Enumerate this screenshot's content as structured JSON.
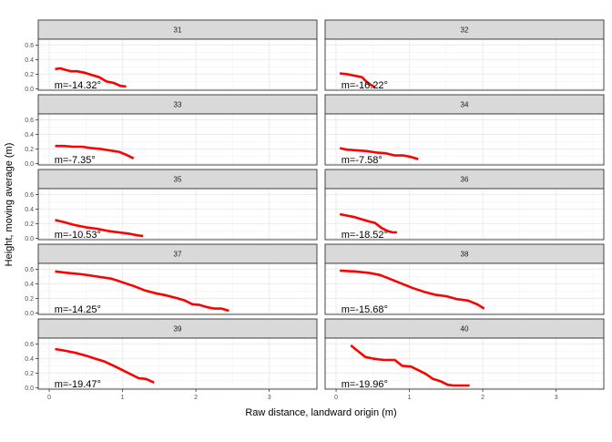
{
  "chart_data": {
    "type": "line",
    "layout": "facet-grid",
    "xlabel": "Raw distance, landward origin (m)",
    "ylabel": "Height, moving average (m)",
    "xlim": [
      -0.15,
      3.65
    ],
    "ylim": [
      -0.02,
      0.68
    ],
    "xticks": [
      0,
      1,
      2,
      3
    ],
    "yticks": [
      0.0,
      0.2,
      0.4,
      0.6
    ],
    "xtick_labels": [
      "0",
      "1",
      "2",
      "3"
    ],
    "ytick_labels": [
      "0.0",
      "0.2",
      "0.4",
      "0.6"
    ],
    "line_color": "#ff0000",
    "panels": [
      {
        "label": "31",
        "annotation": "m=-14.32°",
        "x": [
          0.08,
          0.15,
          0.22,
          0.3,
          0.38,
          0.48,
          0.58,
          0.68,
          0.78,
          0.88,
          0.97,
          1.05
        ],
        "y": [
          0.27,
          0.28,
          0.26,
          0.24,
          0.24,
          0.22,
          0.19,
          0.16,
          0.1,
          0.08,
          0.04,
          0.03
        ]
      },
      {
        "label": "32",
        "annotation": "m=-16.22°",
        "x": [
          0.05,
          0.15,
          0.25,
          0.35,
          0.42,
          0.48,
          0.53
        ],
        "y": [
          0.21,
          0.2,
          0.18,
          0.16,
          0.09,
          0.05,
          0.02
        ]
      },
      {
        "label": "33",
        "annotation": "m=-7.35°",
        "x": [
          0.08,
          0.2,
          0.32,
          0.45,
          0.58,
          0.7,
          0.82,
          0.95,
          1.05,
          1.15
        ],
        "y": [
          0.24,
          0.24,
          0.23,
          0.23,
          0.21,
          0.2,
          0.18,
          0.16,
          0.12,
          0.07
        ]
      },
      {
        "label": "34",
        "annotation": "m=-7.58°",
        "x": [
          0.05,
          0.15,
          0.28,
          0.42,
          0.55,
          0.68,
          0.8,
          0.92,
          1.02,
          1.12
        ],
        "y": [
          0.21,
          0.19,
          0.18,
          0.17,
          0.15,
          0.14,
          0.11,
          0.11,
          0.09,
          0.06
        ]
      },
      {
        "label": "35",
        "annotation": "m=-10.53°",
        "x": [
          0.08,
          0.2,
          0.35,
          0.5,
          0.65,
          0.8,
          0.95,
          1.1,
          1.2,
          1.28
        ],
        "y": [
          0.25,
          0.22,
          0.18,
          0.15,
          0.13,
          0.1,
          0.08,
          0.06,
          0.04,
          0.03
        ]
      },
      {
        "label": "36",
        "annotation": "m=-18.52°",
        "x": [
          0.05,
          0.15,
          0.25,
          0.35,
          0.45,
          0.53,
          0.62,
          0.7,
          0.77,
          0.83
        ],
        "y": [
          0.33,
          0.31,
          0.29,
          0.26,
          0.23,
          0.21,
          0.14,
          0.1,
          0.08,
          0.08
        ]
      },
      {
        "label": "37",
        "annotation": "m=-14.25°",
        "x": [
          0.08,
          0.25,
          0.45,
          0.65,
          0.85,
          1.0,
          1.15,
          1.3,
          1.45,
          1.6,
          1.75,
          1.85,
          1.95,
          2.05,
          2.15,
          2.25,
          2.35,
          2.45
        ],
        "y": [
          0.57,
          0.55,
          0.53,
          0.5,
          0.47,
          0.42,
          0.37,
          0.31,
          0.27,
          0.24,
          0.2,
          0.17,
          0.12,
          0.11,
          0.08,
          0.06,
          0.06,
          0.03
        ]
      },
      {
        "label": "38",
        "annotation": "m=-15.68°",
        "x": [
          0.05,
          0.25,
          0.45,
          0.6,
          0.75,
          0.9,
          1.05,
          1.2,
          1.35,
          1.5,
          1.65,
          1.8,
          1.92,
          2.02
        ],
        "y": [
          0.58,
          0.57,
          0.55,
          0.52,
          0.46,
          0.4,
          0.34,
          0.29,
          0.25,
          0.23,
          0.19,
          0.17,
          0.12,
          0.06
        ]
      },
      {
        "label": "39",
        "annotation": "m=-19.47°",
        "x": [
          0.08,
          0.2,
          0.35,
          0.5,
          0.62,
          0.75,
          0.88,
          1.0,
          1.12,
          1.22,
          1.32,
          1.43
        ],
        "y": [
          0.53,
          0.51,
          0.48,
          0.44,
          0.4,
          0.36,
          0.3,
          0.24,
          0.18,
          0.13,
          0.12,
          0.07
        ]
      },
      {
        "label": "40",
        "annotation": "m=-19.96°",
        "x": [
          0.2,
          0.3,
          0.4,
          0.5,
          0.65,
          0.8,
          0.9,
          1.02,
          1.12,
          1.22,
          1.32,
          1.42,
          1.52,
          1.6,
          1.7,
          1.82
        ],
        "y": [
          0.58,
          0.5,
          0.42,
          0.4,
          0.38,
          0.38,
          0.3,
          0.29,
          0.24,
          0.19,
          0.12,
          0.09,
          0.04,
          0.03,
          0.03,
          0.03
        ]
      }
    ]
  }
}
